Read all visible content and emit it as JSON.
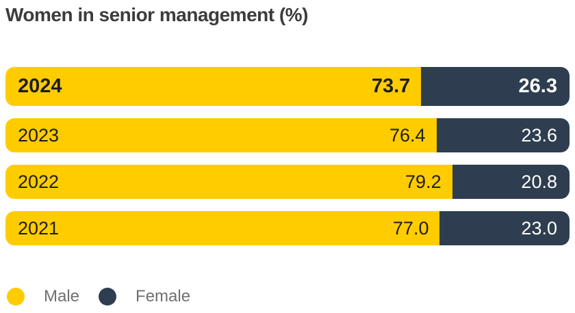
{
  "title": "Women in senior management (%)",
  "colors": {
    "male": "#ffcc00",
    "female": "#2e3e50",
    "title": "#3c3c3b",
    "legend_text": "#706f6f"
  },
  "chart_data": {
    "type": "bar",
    "stacked": true,
    "orientation": "horizontal",
    "title": "Women in senior management (%)",
    "categories": [
      "2024",
      "2023",
      "2022",
      "2021"
    ],
    "series": [
      {
        "name": "Male",
        "values": [
          73.7,
          76.4,
          79.2,
          77.0
        ]
      },
      {
        "name": "Female",
        "values": [
          26.3,
          23.6,
          20.8,
          23.0
        ]
      }
    ],
    "xlim": [
      0,
      100
    ],
    "highlight_category": "2024",
    "legend_position": "bottom",
    "grid": false
  },
  "legend": {
    "male_label": "Male",
    "female_label": "Female"
  }
}
